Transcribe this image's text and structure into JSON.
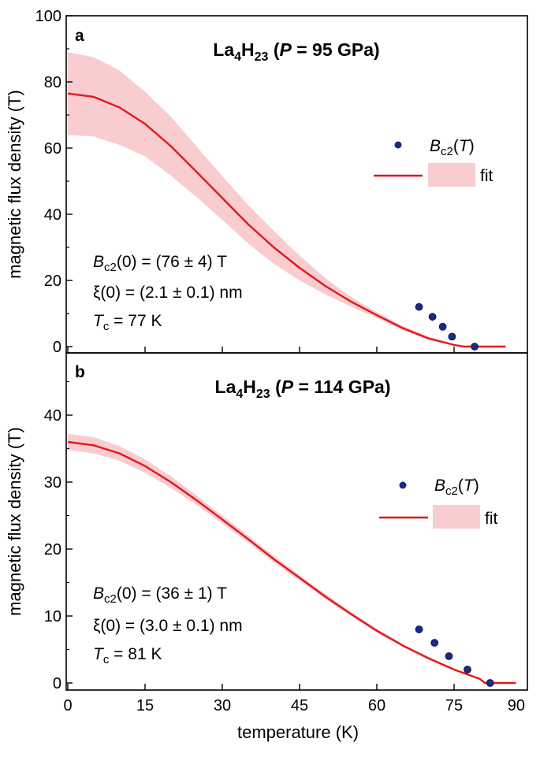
{
  "colors": {
    "fit_line": "#e3171b",
    "band_fill": "#f9cccf",
    "point_fill": "#1a2a80",
    "axis": "#000000"
  },
  "x_axis": {
    "label": "temperature (K)",
    "ticks": [
      "0",
      "15",
      "30",
      "45",
      "60",
      "75",
      "90"
    ]
  },
  "panels": [
    {
      "letter": "a",
      "title": {
        "base1": "La",
        "sub1": "4",
        "base2": "H",
        "sub2": "23",
        "open": " (",
        "pvar": "P",
        "rest": " = 95 GPa)"
      },
      "ylabel": "magnetic flux density (T)",
      "yticks": [
        "0",
        "20",
        "40",
        "60",
        "80",
        "100"
      ],
      "legend": {
        "points_var": "B",
        "points_sub": "c2",
        "points_open": "(",
        "points_arg": "T",
        "points_close": ")",
        "fit_label": "fit"
      },
      "annotations": {
        "bc2": {
          "var": "B",
          "sub": "c2",
          "text": "(0) = (76 ± 4) T"
        },
        "xi": "ξ(0) = (2.1 ± 0.1) nm",
        "tc": {
          "var": "T",
          "sub": "c",
          "text": " = 77 K"
        }
      }
    },
    {
      "letter": "b",
      "title": {
        "base1": "La",
        "sub1": "4",
        "base2": "H",
        "sub2": "23",
        "open": " (",
        "pvar": "P",
        "rest": " = 114 GPa)"
      },
      "ylabel": "magnetic flux density (T)",
      "yticks": [
        "0",
        "10",
        "20",
        "30",
        "40"
      ],
      "legend": {
        "points_var": "B",
        "points_sub": "c2",
        "points_open": "(",
        "points_arg": "T",
        "points_close": ")",
        "fit_label": "fit"
      },
      "annotations": {
        "bc2": {
          "var": "B",
          "sub": "c2",
          "text": "(0) = (36 ± 1) T"
        },
        "xi": "ξ(0) = (3.0 ± 0.1) nm",
        "tc": {
          "var": "T",
          "sub": "c",
          "text": " = 81 K"
        }
      }
    }
  ],
  "chart_data": [
    {
      "type": "scatter",
      "title": "La4H23 (P = 95 GPa)",
      "xlabel": "temperature (K)",
      "ylabel": "magnetic flux density (T)",
      "xlim": [
        0,
        90
      ],
      "ylim": [
        -2,
        100
      ],
      "grid": false,
      "legend_position": "right",
      "series": [
        {
          "name": "Bc2(T)",
          "kind": "points",
          "x": [
            68.2,
            70.8,
            72.8,
            74.6,
            79.0
          ],
          "y": [
            12,
            9,
            6,
            3,
            0
          ]
        },
        {
          "name": "fit",
          "kind": "line",
          "x": [
            0,
            5,
            10,
            15,
            20,
            25,
            30,
            35,
            40,
            45,
            50,
            55,
            60,
            65,
            70,
            75,
            77,
            85
          ],
          "y": [
            76.5,
            75.5,
            72.3,
            67.3,
            60.6,
            52.8,
            44.9,
            37.0,
            30.0,
            23.8,
            18.3,
            13.6,
            9.5,
            5.6,
            2.5,
            0.5,
            0,
            0
          ],
          "band_upper": [
            89,
            87.5,
            83.5,
            77.0,
            69.5,
            60.5,
            51.5,
            42.8,
            35.0,
            27.5,
            20.7,
            15.0,
            10.4,
            6.3,
            3.0,
            0.8,
            0,
            0
          ],
          "band_lower": [
            64,
            63.5,
            61.0,
            57.5,
            51.7,
            45.2,
            38.3,
            31.2,
            25.0,
            20.0,
            15.8,
            12.1,
            8.6,
            5.0,
            2.0,
            0.3,
            0,
            0
          ]
        }
      ]
    },
    {
      "type": "scatter",
      "title": "La4H23 (P = 114 GPa)",
      "xlabel": "temperature (K)",
      "ylabel": "magnetic flux density (T)",
      "xlim": [
        0,
        90
      ],
      "ylim": [
        -1,
        49
      ],
      "grid": false,
      "legend_position": "right",
      "series": [
        {
          "name": "Bc2(T)",
          "kind": "points",
          "x": [
            68.2,
            71.2,
            74.0,
            77.6,
            82.0
          ],
          "y": [
            8,
            6,
            4,
            2,
            0
          ]
        },
        {
          "name": "fit",
          "kind": "line",
          "x": [
            0,
            5,
            10,
            15,
            20,
            25,
            30,
            35,
            40,
            45,
            50,
            55,
            60,
            65,
            70,
            75,
            80,
            81,
            87
          ],
          "y": [
            36,
            35.5,
            34.3,
            32.4,
            30.0,
            27.3,
            24.4,
            21.5,
            18.5,
            15.7,
            12.9,
            10.3,
            7.8,
            5.6,
            3.7,
            2.0,
            0.6,
            0,
            0
          ],
          "band_upper": [
            37.2,
            36.7,
            35.4,
            33.4,
            30.9,
            28.0,
            25.0,
            22.0,
            19.0,
            16.1,
            13.3,
            10.6,
            8.1,
            5.8,
            3.9,
            2.1,
            0.7,
            0,
            0
          ],
          "band_lower": [
            34.8,
            34.3,
            33.2,
            31.4,
            29.1,
            26.6,
            23.8,
            21.0,
            18.0,
            15.3,
            12.5,
            10.0,
            7.5,
            5.4,
            3.5,
            1.9,
            0.5,
            0,
            0
          ]
        }
      ]
    }
  ]
}
